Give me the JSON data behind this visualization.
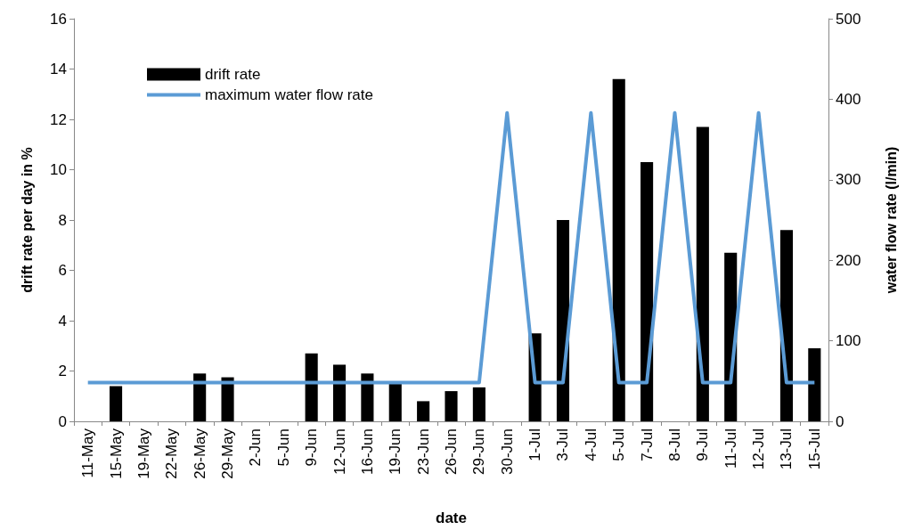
{
  "chart_data": {
    "type": "bar",
    "xlabel": "date",
    "ylabel": "drift rate per day in %",
    "y2label": "water flow rate (l/min)",
    "categories": [
      "11-May",
      "15-May",
      "19-May",
      "22-May",
      "26-May",
      "29-May",
      "2-Jun",
      "5-Jun",
      "9-Jun",
      "12-Jun",
      "16-Jun",
      "19-Jun",
      "23-Jun",
      "26-Jun",
      "29-Jun",
      "30-Jun",
      "1-Jul",
      "3-Jul",
      "4-Jul",
      "5-Jul",
      "7-Jul",
      "8-Jul",
      "9-Jul",
      "11-Jul",
      "12-Jul",
      "13-Jul",
      "15-Jul"
    ],
    "series": [
      {
        "name": "drift rate",
        "color": "#000000",
        "values": [
          null,
          1.4,
          null,
          null,
          1.9,
          1.75,
          null,
          null,
          2.7,
          2.25,
          1.9,
          1.5,
          0.8,
          1.2,
          1.35,
          null,
          3.5,
          8.0,
          null,
          13.6,
          10.3,
          null,
          11.7,
          6.7,
          null,
          7.6,
          2.9
        ]
      },
      {
        "name": "maximum water flow rate",
        "type": "line",
        "axis": "y2",
        "color": "#5b9bd5",
        "values": [
          48,
          48,
          48,
          48,
          48,
          48,
          48,
          48,
          48,
          48,
          48,
          48,
          48,
          48,
          48,
          383,
          48,
          48,
          383,
          48,
          48,
          383,
          48,
          48,
          383,
          48,
          48
        ]
      }
    ],
    "ylim": [
      0,
      16
    ],
    "yticks": [
      0,
      2,
      4,
      6,
      8,
      10,
      12,
      14,
      16
    ],
    "y2lim": [
      0,
      500
    ],
    "y2ticks": [
      0,
      100,
      200,
      300,
      400,
      500
    ],
    "grid": false,
    "legend": "top left",
    "marker": "none",
    "line_style": "solid"
  }
}
